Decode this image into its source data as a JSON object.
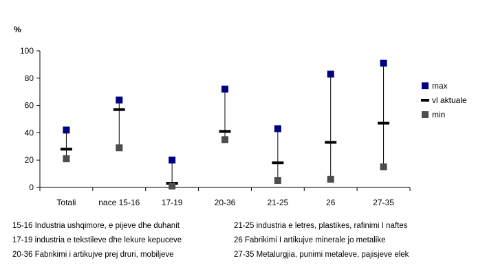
{
  "chart_data": {
    "type": "scatter",
    "unit_label": "%",
    "categories": [
      "Totali",
      "nace 15-16",
      "17-19",
      "20-36",
      "21-25",
      "26",
      "27-35"
    ],
    "series": [
      {
        "name": "max",
        "color": "#000080",
        "marker": "square",
        "values": [
          42,
          64,
          20,
          72,
          43,
          83,
          91
        ]
      },
      {
        "name": "vl aktuale",
        "color": "#000000",
        "marker": "dash",
        "values": [
          28,
          57,
          3,
          41,
          18,
          33,
          47
        ]
      },
      {
        "name": "min",
        "color": "#4d4d4d",
        "marker": "square",
        "values": [
          21,
          29,
          1,
          35,
          5,
          6,
          15
        ]
      }
    ],
    "ylim": [
      0,
      100
    ],
    "yticks": [
      0,
      20,
      40,
      60,
      80,
      100
    ],
    "grid": false,
    "legend_position": "right"
  },
  "notes": [
    "15-16 Industria ushqimore, e pijeve dhe duhanit",
    "21-25 industria e letres, plastikes, rafinimi I naftes",
    "17-19 industria e tekstileve dhe lekure kepuceve",
    "26 Fabrikimi I artikujve minerale jo metalike",
    "20-36 Fabrikimi i artikujve prej druri, mobiljeve",
    "27-35 Metalurgjia, punimi metaleve, pajisjeve elek"
  ]
}
